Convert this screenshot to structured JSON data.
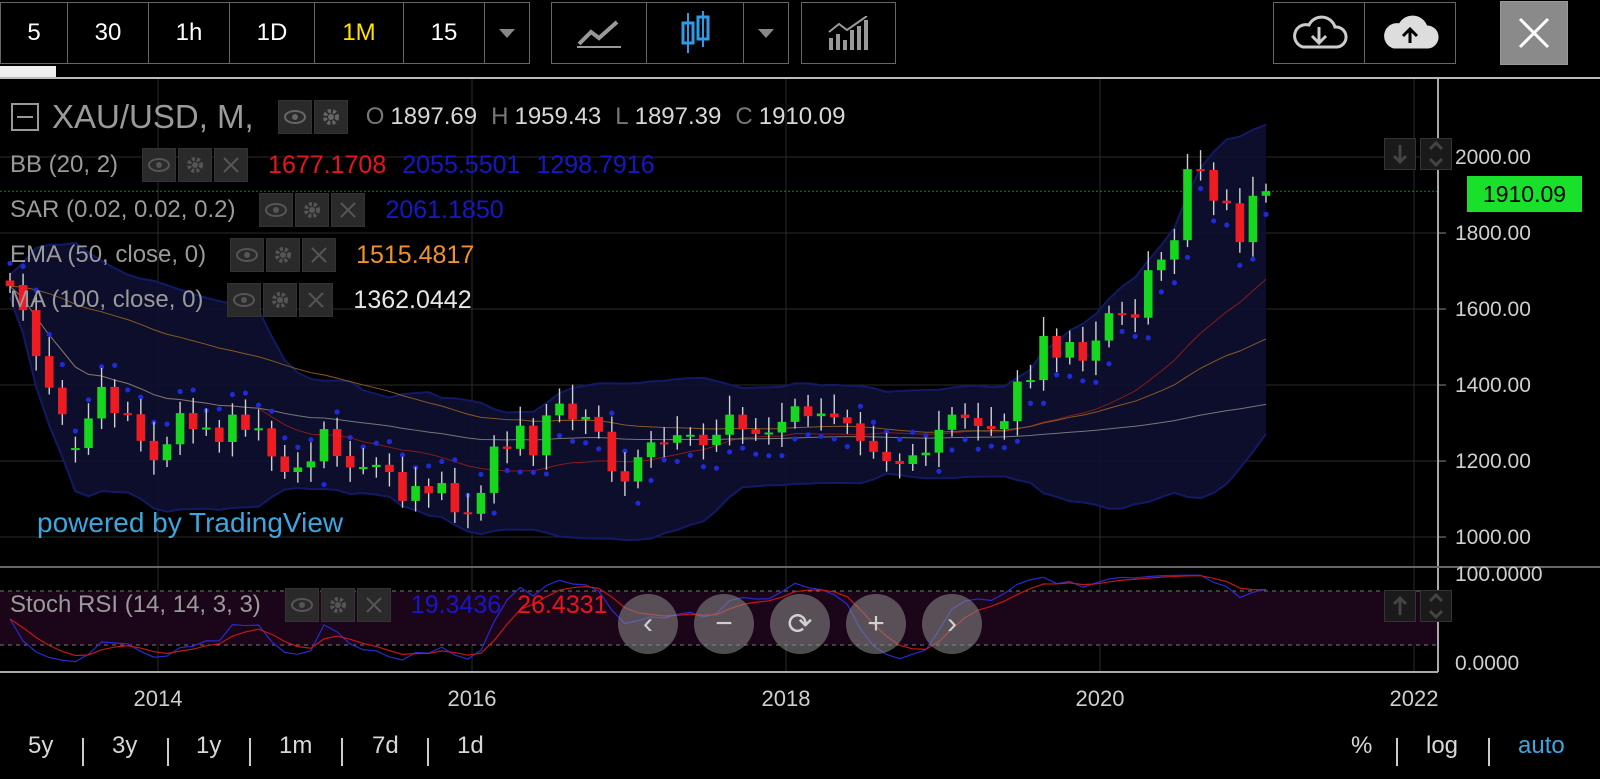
{
  "toolbar": {
    "intervals": [
      "5",
      "30",
      "1h",
      "1D",
      "1M",
      "15"
    ],
    "active_interval": "1M",
    "close_label": "×"
  },
  "legend": {
    "symbol": "XAU/USD, M,",
    "ohlc": {
      "o_label": "O",
      "o": "1897.69",
      "h_label": "H",
      "h": "1959.43",
      "l_label": "L",
      "l": "1897.39",
      "c_label": "C",
      "c": "1910.09"
    },
    "indicators": [
      {
        "name": "BB (20, 2)",
        "values": [
          "1677.1708",
          "2055.5501",
          "1298.7916"
        ],
        "colors": [
          "#e8141e",
          "#1717c8",
          "#1717c8"
        ]
      },
      {
        "name": "SAR (0.02, 0.02, 0.2)",
        "values": [
          "2061.1850"
        ],
        "colors": [
          "#1717c8"
        ]
      },
      {
        "name": "EMA (50, close, 0)",
        "values": [
          "1515.4817"
        ],
        "colors": [
          "#f0922c"
        ]
      },
      {
        "name": "MA (100, close, 0)",
        "values": [
          "1362.0442"
        ],
        "colors": [
          "#e8e8e8"
        ]
      }
    ],
    "stoch": {
      "name": "Stoch RSI (14, 14, 3, 3)",
      "values": [
        "19.3436",
        "26.4331"
      ],
      "colors": [
        "#1717c8",
        "#e8141e"
      ]
    }
  },
  "price_label": "1910.09",
  "watermark": "powered by TradingView",
  "nav_buttons": [
    "‹",
    "−",
    "⟳",
    "+",
    "›"
  ],
  "bottom_bar": {
    "ranges": [
      "5y",
      "3y",
      "1y",
      "1m",
      "7d",
      "1d"
    ],
    "scale": [
      "%",
      "log",
      "auto"
    ]
  },
  "colors": {
    "up": "#17d61e",
    "down": "#ee1c22",
    "bb": "#1717c8",
    "ema": "#f0922c",
    "ma": "#dcdcdc",
    "price_tag": "#18e02b"
  },
  "chart_data": {
    "type": "candlestick",
    "x_ticks": [
      "2014",
      "2016",
      "2018",
      "2020",
      "2022"
    ],
    "y_ticks": [
      "2000.00",
      "1800.00",
      "1600.00",
      "1400.00",
      "1200.00",
      "1000.00"
    ],
    "ylim": [
      960,
      2110
    ],
    "xlim": [
      "2013-01",
      "2022-01"
    ],
    "stoch_ticks": [
      "100.0000",
      "0.0000"
    ],
    "grid": true,
    "closes": [
      1660,
      1597,
      1476,
      1393,
      1323,
      1234,
      1312,
      1395,
      1326,
      1323,
      1253,
      1202,
      1244,
      1326,
      1284,
      1288,
      1250,
      1322,
      1282,
      1286,
      1212,
      1171,
      1183,
      1199,
      1284,
      1213,
      1183,
      1184,
      1190,
      1171,
      1095,
      1134,
      1115,
      1142,
      1065,
      1061,
      1116,
      1238,
      1232,
      1293,
      1215,
      1320,
      1351,
      1309,
      1316,
      1277,
      1173,
      1146,
      1210,
      1249,
      1248,
      1268,
      1269,
      1242,
      1269,
      1322,
      1283,
      1271,
      1275,
      1303,
      1344,
      1318,
      1325,
      1315,
      1299,
      1253,
      1224,
      1200,
      1192,
      1215,
      1222,
      1282,
      1322,
      1313,
      1292,
      1284,
      1305,
      1409,
      1413,
      1529,
      1472,
      1513,
      1464,
      1517,
      1589,
      1586,
      1577,
      1702,
      1730,
      1781,
      1968,
      1966,
      1885,
      1878,
      1776,
      1898,
      1910
    ],
    "opens": [
      1675,
      1663,
      1597,
      1476,
      1393,
      1234,
      1234,
      1312,
      1395,
      1326,
      1323,
      1253,
      1202,
      1244,
      1326,
      1284,
      1288,
      1250,
      1322,
      1282,
      1286,
      1212,
      1171,
      1183,
      1199,
      1284,
      1213,
      1183,
      1184,
      1190,
      1171,
      1095,
      1134,
      1115,
      1142,
      1065,
      1061,
      1116,
      1238,
      1232,
      1293,
      1215,
      1320,
      1351,
      1309,
      1316,
      1277,
      1173,
      1146,
      1210,
      1249,
      1248,
      1268,
      1269,
      1242,
      1269,
      1322,
      1283,
      1271,
      1275,
      1303,
      1344,
      1318,
      1325,
      1315,
      1299,
      1253,
      1224,
      1200,
      1192,
      1215,
      1222,
      1282,
      1322,
      1313,
      1292,
      1284,
      1305,
      1409,
      1413,
      1529,
      1472,
      1513,
      1464,
      1517,
      1589,
      1586,
      1577,
      1702,
      1730,
      1781,
      1968,
      1966,
      1885,
      1878,
      1776,
      1898
    ]
  }
}
